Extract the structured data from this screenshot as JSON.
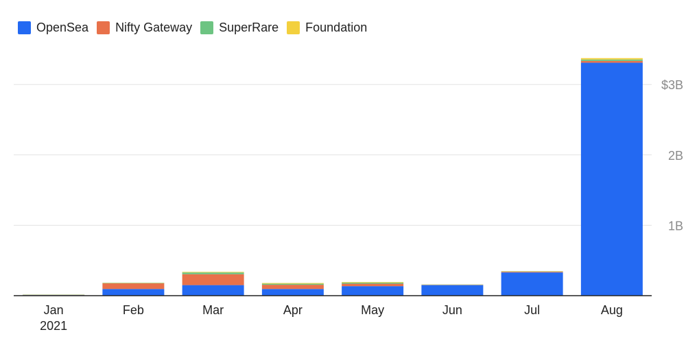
{
  "chart_data": {
    "type": "bar",
    "stacked": true,
    "categories": [
      "Jan",
      "Feb",
      "Mar",
      "Apr",
      "May",
      "Jun",
      "Jul",
      "Aug"
    ],
    "category_sublabels": [
      "2021",
      "",
      "",
      "",
      "",
      "",
      "",
      ""
    ],
    "series": [
      {
        "name": "OpenSea",
        "color": "#2369f2",
        "values": [
          0.008,
          0.095,
          0.15,
          0.095,
          0.135,
          0.15,
          0.33,
          3.31
        ]
      },
      {
        "name": "Nifty Gateway",
        "color": "#e8714a",
        "values": [
          0.004,
          0.08,
          0.155,
          0.06,
          0.035,
          0.004,
          0.01,
          0.025
        ]
      },
      {
        "name": "SuperRare",
        "color": "#6dc482",
        "values": [
          0.003,
          0.005,
          0.025,
          0.015,
          0.015,
          0.004,
          0.005,
          0.02
        ]
      },
      {
        "name": "Foundation",
        "color": "#f3d03e",
        "values": [
          0.001,
          0.003,
          0.008,
          0.01,
          0.008,
          0.002,
          0.003,
          0.02
        ]
      }
    ],
    "y_ticks": [
      {
        "value": 1,
        "label": "1B"
      },
      {
        "value": 2,
        "label": "2B"
      },
      {
        "value": 3,
        "label": "$3B"
      }
    ],
    "ylim": [
      0,
      3.4
    ],
    "y_axis_side": "right",
    "grid": true,
    "legend_position": "top-left",
    "title": "",
    "xlabel": "",
    "ylabel": ""
  }
}
